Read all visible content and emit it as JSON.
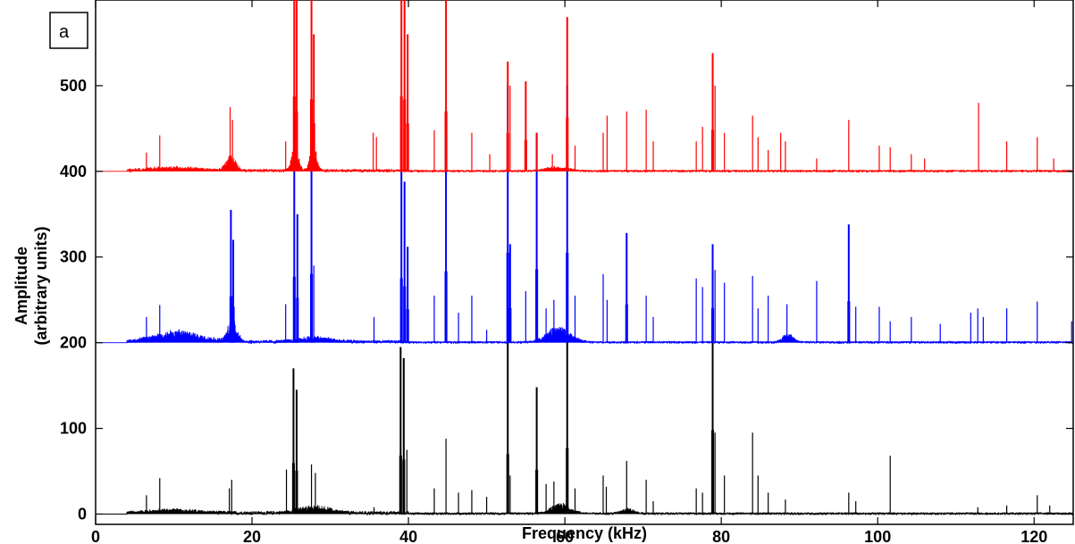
{
  "chart_data": {
    "type": "line",
    "panel_label": "a",
    "xlabel": "Frequency (kHz)",
    "ylabel_line1": "Amplitude",
    "ylabel_line2": "(arbitrary units)",
    "xlim": [
      0,
      125
    ],
    "ylim": [
      -12,
      600
    ],
    "xticks": [
      0,
      20,
      40,
      60,
      80,
      100,
      120
    ],
    "yticks": [
      0,
      100,
      200,
      300,
      400,
      500
    ],
    "grid": false,
    "series": [
      {
        "color": "#000000",
        "baseline": 0,
        "bumps": [
          [
            10,
            3,
            4
          ],
          [
            28,
            2,
            8
          ],
          [
            59.5,
            1.2,
            12
          ],
          [
            68,
            0.8,
            6
          ]
        ],
        "peaks": [
          [
            6.5,
            22
          ],
          [
            8.2,
            42
          ],
          [
            17.1,
            30
          ],
          [
            17.4,
            40
          ],
          [
            24.4,
            52
          ],
          [
            25.3,
            170
          ],
          [
            25.7,
            145
          ],
          [
            27.6,
            58
          ],
          [
            28.1,
            48
          ],
          [
            35.6,
            8
          ],
          [
            39.0,
            195
          ],
          [
            39.4,
            182
          ],
          [
            39.8,
            75
          ],
          [
            43.3,
            30
          ],
          [
            44.8,
            88
          ],
          [
            46.4,
            25
          ],
          [
            48.1,
            28
          ],
          [
            50.0,
            20
          ],
          [
            52.7,
            200
          ],
          [
            53.0,
            45
          ],
          [
            56.4,
            148
          ],
          [
            57.6,
            35
          ],
          [
            58.6,
            38
          ],
          [
            60.3,
            220
          ],
          [
            61.3,
            30
          ],
          [
            64.9,
            45
          ],
          [
            65.3,
            32
          ],
          [
            67.9,
            62
          ],
          [
            70.4,
            40
          ],
          [
            71.3,
            15
          ],
          [
            76.8,
            30
          ],
          [
            77.6,
            25
          ],
          [
            78.9,
            280
          ],
          [
            79.2,
            95
          ],
          [
            80.4,
            45
          ],
          [
            84.0,
            95
          ],
          [
            84.7,
            45
          ],
          [
            86.0,
            25
          ],
          [
            88.2,
            17
          ],
          [
            96.3,
            25
          ],
          [
            97.2,
            15
          ],
          [
            101.6,
            68
          ],
          [
            112.8,
            8
          ],
          [
            116.5,
            10
          ],
          [
            120.4,
            22
          ],
          [
            122.0,
            10
          ]
        ],
        "noise": 3.5
      },
      {
        "color": "#0000ff",
        "baseline": 200,
        "bumps": [
          [
            10.5,
            3,
            13
          ],
          [
            17.5,
            0.6,
            25
          ],
          [
            28,
            2,
            6
          ],
          [
            59.2,
            1.5,
            18
          ],
          [
            88.5,
            0.7,
            10
          ]
        ],
        "peaks": [
          [
            6.5,
            30
          ],
          [
            8.2,
            44
          ],
          [
            17.3,
            155
          ],
          [
            17.6,
            120
          ],
          [
            24.3,
            45
          ],
          [
            25.4,
            220
          ],
          [
            25.8,
            150
          ],
          [
            27.6,
            230
          ],
          [
            27.9,
            90
          ],
          [
            35.6,
            30
          ],
          [
            39.1,
            215
          ],
          [
            39.5,
            188
          ],
          [
            39.9,
            112
          ],
          [
            43.3,
            55
          ],
          [
            44.8,
            238
          ],
          [
            46.4,
            35
          ],
          [
            48.1,
            55
          ],
          [
            50.0,
            15
          ],
          [
            52.7,
            300
          ],
          [
            53.0,
            115
          ],
          [
            55.0,
            60
          ],
          [
            56.4,
            245
          ],
          [
            57.6,
            40
          ],
          [
            58.6,
            50
          ],
          [
            60.3,
            300
          ],
          [
            61.3,
            55
          ],
          [
            64.9,
            80
          ],
          [
            65.4,
            50
          ],
          [
            67.9,
            128
          ],
          [
            70.4,
            55
          ],
          [
            71.3,
            30
          ],
          [
            76.8,
            75
          ],
          [
            77.6,
            65
          ],
          [
            78.9,
            115
          ],
          [
            79.2,
            85
          ],
          [
            80.4,
            70
          ],
          [
            84.0,
            78
          ],
          [
            84.7,
            40
          ],
          [
            86.0,
            55
          ],
          [
            88.4,
            45
          ],
          [
            92.2,
            72
          ],
          [
            96.3,
            138
          ],
          [
            97.2,
            42
          ],
          [
            100.2,
            42
          ],
          [
            101.6,
            25
          ],
          [
            104.3,
            30
          ],
          [
            108.0,
            22
          ],
          [
            111.9,
            35
          ],
          [
            112.8,
            40
          ],
          [
            113.5,
            30
          ],
          [
            116.5,
            40
          ],
          [
            120.4,
            48
          ],
          [
            124.8,
            25
          ]
        ],
        "noise": 3.2
      },
      {
        "color": "#ff0000",
        "baseline": 400,
        "bumps": [
          [
            10,
            3,
            4
          ],
          [
            17.3,
            0.6,
            18
          ],
          [
            25.5,
            0.4,
            35
          ],
          [
            27.8,
            0.4,
            35
          ],
          [
            59,
            1.5,
            5
          ]
        ],
        "peaks": [
          [
            6.5,
            22
          ],
          [
            8.2,
            42
          ],
          [
            17.2,
            75
          ],
          [
            17.5,
            60
          ],
          [
            24.3,
            35
          ],
          [
            25.4,
            250
          ],
          [
            25.7,
            200
          ],
          [
            27.6,
            240
          ],
          [
            27.9,
            160
          ],
          [
            35.5,
            45
          ],
          [
            35.9,
            40
          ],
          [
            39.1,
            250
          ],
          [
            39.5,
            240
          ],
          [
            39.9,
            160
          ],
          [
            43.3,
            48
          ],
          [
            44.8,
            200
          ],
          [
            48.1,
            45
          ],
          [
            50.4,
            20
          ],
          [
            52.7,
            128
          ],
          [
            53.0,
            100
          ],
          [
            55.0,
            105
          ],
          [
            56.4,
            45
          ],
          [
            58.4,
            20
          ],
          [
            60.3,
            180
          ],
          [
            61.3,
            30
          ],
          [
            64.9,
            45
          ],
          [
            65.4,
            65
          ],
          [
            67.9,
            70
          ],
          [
            70.4,
            72
          ],
          [
            71.3,
            35
          ],
          [
            76.8,
            35
          ],
          [
            77.6,
            52
          ],
          [
            78.9,
            138
          ],
          [
            79.2,
            100
          ],
          [
            80.4,
            45
          ],
          [
            84.0,
            65
          ],
          [
            84.7,
            40
          ],
          [
            86.0,
            25
          ],
          [
            87.6,
            45
          ],
          [
            88.2,
            35
          ],
          [
            92.2,
            15
          ],
          [
            96.3,
            60
          ],
          [
            100.2,
            30
          ],
          [
            101.6,
            28
          ],
          [
            104.3,
            20
          ],
          [
            106.0,
            15
          ],
          [
            112.9,
            80
          ],
          [
            116.5,
            35
          ],
          [
            120.4,
            40
          ],
          [
            122.5,
            15
          ]
        ],
        "noise": 2.8
      }
    ]
  }
}
